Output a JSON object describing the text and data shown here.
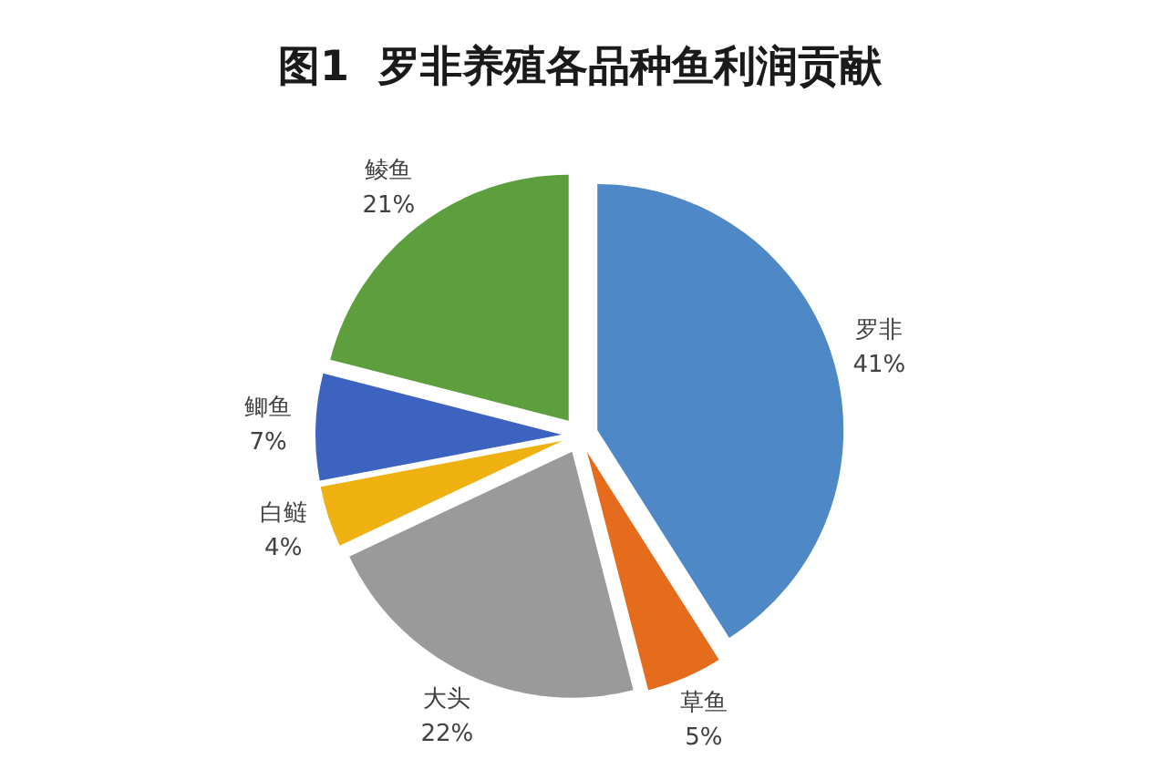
{
  "chart_data": {
    "type": "pie",
    "title": "图1  罗非养殖各品种鱼利润贡献",
    "categories": [
      "罗非",
      "草鱼",
      "大头",
      "白鲢",
      "鲫鱼",
      "鲮鱼"
    ],
    "values": [
      41,
      5,
      22,
      4,
      7,
      21
    ],
    "value_labels": [
      "41%",
      "5%",
      "22%",
      "4%",
      "7%",
      "21%"
    ],
    "colors": [
      "#4f88c6",
      "#e46c1c",
      "#9a9a9a",
      "#efb10f",
      "#3b63bf",
      "#5c9f3c"
    ],
    "legend": false
  }
}
